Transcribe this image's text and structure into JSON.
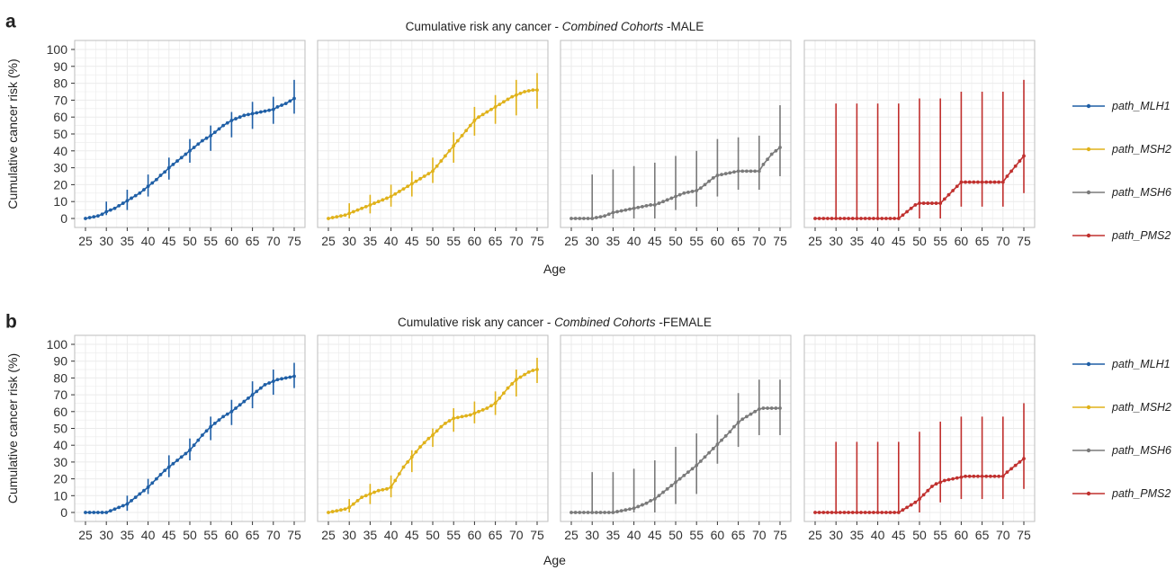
{
  "colors": {
    "path_MLH1": "#1f5fa6",
    "path_MSH2": "#e0b21a",
    "path_MSH6": "#7a7a7a",
    "path_PMS2": "#c0302e",
    "panel_border": "#bdbdbd",
    "grid": "#ebebeb"
  },
  "chart_data": [
    {
      "type": "line",
      "panel_letter": "a",
      "title": {
        "prefix": "Cumulative risk any cancer - ",
        "italic": "Combined Cohorts",
        "suffix": " -MALE"
      },
      "xlabel": "Age",
      "ylabel": "Cumulative cancer risk (%)",
      "ylim": [
        0,
        100
      ],
      "yticks": [
        0,
        10,
        20,
        30,
        40,
        50,
        60,
        70,
        80,
        90,
        100
      ],
      "xlim": [
        25,
        75
      ],
      "xticks": [
        25,
        30,
        35,
        40,
        45,
        50,
        55,
        60,
        65,
        70,
        75
      ],
      "grid": true,
      "legend_position": "right",
      "facets": [
        "path_MLH1",
        "path_MSH2",
        "path_MSH6",
        "path_PMS2"
      ],
      "x": [
        25,
        26,
        27,
        28,
        29,
        30,
        31,
        32,
        33,
        34,
        35,
        36,
        37,
        38,
        39,
        40,
        41,
        42,
        43,
        44,
        45,
        46,
        47,
        48,
        49,
        50,
        51,
        52,
        53,
        54,
        55,
        56,
        57,
        58,
        59,
        60,
        61,
        62,
        63,
        64,
        65,
        66,
        67,
        68,
        69,
        70,
        71,
        72,
        73,
        74,
        75
      ],
      "series": [
        {
          "name": "path_MLH1",
          "values": [
            0,
            0.5,
            1,
            1.5,
            2.5,
            4,
            5,
            6,
            7.5,
            9,
            10.5,
            12,
            13.5,
            15,
            17,
            19,
            21,
            23,
            25.5,
            27.5,
            30,
            32,
            34,
            36,
            38,
            40,
            42,
            44,
            46,
            47.5,
            49,
            51,
            53,
            55,
            56.5,
            58,
            59,
            60,
            61,
            61.5,
            62,
            62.5,
            63,
            63.5,
            64,
            64.5,
            66,
            67,
            68,
            69.5,
            71
          ],
          "errorbars": [
            {
              "x": 30,
              "low": 2,
              "high": 10
            },
            {
              "x": 35,
              "low": 5,
              "high": 17
            },
            {
              "x": 40,
              "low": 13,
              "high": 26
            },
            {
              "x": 45,
              "low": 23,
              "high": 36
            },
            {
              "x": 50,
              "low": 33,
              "high": 47
            },
            {
              "x": 55,
              "low": 40,
              "high": 55
            },
            {
              "x": 60,
              "low": 48,
              "high": 63
            },
            {
              "x": 65,
              "low": 53,
              "high": 69
            },
            {
              "x": 70,
              "low": 56,
              "high": 72
            },
            {
              "x": 75,
              "low": 62,
              "high": 82
            }
          ]
        },
        {
          "name": "path_MSH2",
          "values": [
            0,
            0.5,
            1,
            1.5,
            2,
            3,
            4,
            5,
            6,
            7,
            8,
            9,
            10,
            11,
            12,
            13,
            14.5,
            16,
            17.5,
            19,
            20.5,
            22,
            23.5,
            25,
            26.5,
            28,
            31,
            34,
            37,
            40,
            43,
            46,
            49,
            52,
            55,
            58,
            60,
            61.5,
            63,
            64.5,
            66,
            67.5,
            69,
            70.5,
            72,
            73,
            74,
            75,
            75.5,
            76,
            76
          ],
          "errorbars": [
            {
              "x": 30,
              "low": 0,
              "high": 9
            },
            {
              "x": 35,
              "low": 3,
              "high": 14
            },
            {
              "x": 40,
              "low": 7,
              "high": 20
            },
            {
              "x": 45,
              "low": 13,
              "high": 28
            },
            {
              "x": 50,
              "low": 21,
              "high": 36
            },
            {
              "x": 55,
              "low": 33,
              "high": 51
            },
            {
              "x": 60,
              "low": 49,
              "high": 66
            },
            {
              "x": 65,
              "low": 56,
              "high": 73
            },
            {
              "x": 70,
              "low": 61,
              "high": 82
            },
            {
              "x": 75,
              "low": 65,
              "high": 86
            }
          ]
        },
        {
          "name": "path_MSH6",
          "values": [
            0,
            0,
            0,
            0,
            0,
            0,
            0.5,
            1,
            1.5,
            2.5,
            3.5,
            4,
            4.5,
            5,
            5.5,
            6,
            6.5,
            7,
            7.5,
            8,
            8,
            9,
            10,
            11,
            12,
            13,
            14,
            15,
            15.5,
            16,
            16.5,
            18,
            20,
            22,
            24,
            25.5,
            26,
            26.5,
            27,
            27.5,
            28,
            28,
            28,
            28,
            28,
            28,
            32,
            35,
            38,
            40,
            42
          ],
          "errorbars": [
            {
              "x": 30,
              "low": 0,
              "high": 26
            },
            {
              "x": 35,
              "low": 0,
              "high": 29
            },
            {
              "x": 40,
              "low": 0,
              "high": 31
            },
            {
              "x": 45,
              "low": 0,
              "high": 33
            },
            {
              "x": 50,
              "low": 5,
              "high": 37
            },
            {
              "x": 55,
              "low": 7,
              "high": 40
            },
            {
              "x": 60,
              "low": 13,
              "high": 47
            },
            {
              "x": 65,
              "low": 17,
              "high": 48
            },
            {
              "x": 70,
              "low": 17,
              "high": 49
            },
            {
              "x": 75,
              "low": 25,
              "high": 67
            }
          ]
        },
        {
          "name": "path_PMS2",
          "values": [
            0,
            0,
            0,
            0,
            0,
            0,
            0,
            0,
            0,
            0,
            0,
            0,
            0,
            0,
            0,
            0,
            0,
            0,
            0,
            0,
            0,
            2,
            4,
            6,
            8,
            9,
            9,
            9,
            9,
            9,
            9,
            11.5,
            14,
            16.5,
            19,
            21.5,
            21.5,
            21.5,
            21.5,
            21.5,
            21.5,
            21.5,
            21.5,
            21.5,
            21.5,
            21.5,
            25,
            28,
            31,
            34,
            37
          ],
          "errorbars": [
            {
              "x": 30,
              "low": 0,
              "high": 68
            },
            {
              "x": 35,
              "low": 0,
              "high": 68
            },
            {
              "x": 40,
              "low": 0,
              "high": 68
            },
            {
              "x": 45,
              "low": 0,
              "high": 68
            },
            {
              "x": 50,
              "low": 0,
              "high": 71
            },
            {
              "x": 55,
              "low": 0,
              "high": 71
            },
            {
              "x": 60,
              "low": 7,
              "high": 75
            },
            {
              "x": 65,
              "low": 7,
              "high": 75
            },
            {
              "x": 70,
              "low": 7,
              "high": 75
            },
            {
              "x": 75,
              "low": 15,
              "high": 82
            }
          ]
        }
      ]
    },
    {
      "type": "line",
      "panel_letter": "b",
      "title": {
        "prefix": "Cumulative risk any cancer - ",
        "italic": "Combined Cohorts",
        "suffix": " -FEMALE"
      },
      "xlabel": "Age",
      "ylabel": "Cumulative cancer risk (%)",
      "ylim": [
        0,
        100
      ],
      "yticks": [
        0,
        10,
        20,
        30,
        40,
        50,
        60,
        70,
        80,
        90,
        100
      ],
      "xlim": [
        25,
        75
      ],
      "xticks": [
        25,
        30,
        35,
        40,
        45,
        50,
        55,
        60,
        65,
        70,
        75
      ],
      "grid": true,
      "legend_position": "right",
      "facets": [
        "path_MLH1",
        "path_MSH2",
        "path_MSH6",
        "path_PMS2"
      ],
      "x": [
        25,
        26,
        27,
        28,
        29,
        30,
        31,
        32,
        33,
        34,
        35,
        36,
        37,
        38,
        39,
        40,
        41,
        42,
        43,
        44,
        45,
        46,
        47,
        48,
        49,
        50,
        51,
        52,
        53,
        54,
        55,
        56,
        57,
        58,
        59,
        60,
        61,
        62,
        63,
        64,
        65,
        66,
        67,
        68,
        69,
        70,
        71,
        72,
        73,
        74,
        75
      ],
      "series": [
        {
          "name": "path_MLH1",
          "values": [
            0,
            0,
            0,
            0,
            0,
            0,
            1,
            2,
            3,
            4,
            5,
            7,
            9,
            11,
            13,
            15,
            17.5,
            20,
            22.5,
            25,
            27,
            29,
            31,
            33,
            35,
            37,
            40,
            43,
            46,
            48.5,
            51,
            53,
            55,
            57,
            58.5,
            60,
            62,
            64,
            66,
            68,
            70,
            72,
            74,
            76,
            77,
            78,
            79,
            79.5,
            80,
            80.5,
            81
          ],
          "errorbars": [
            {
              "x": 35,
              "low": 1,
              "high": 10
            },
            {
              "x": 40,
              "low": 11,
              "high": 20
            },
            {
              "x": 45,
              "low": 21,
              "high": 34
            },
            {
              "x": 50,
              "low": 31,
              "high": 44
            },
            {
              "x": 55,
              "low": 43,
              "high": 57
            },
            {
              "x": 60,
              "low": 52,
              "high": 67
            },
            {
              "x": 65,
              "low": 62,
              "high": 78
            },
            {
              "x": 70,
              "low": 70,
              "high": 85
            },
            {
              "x": 75,
              "low": 74,
              "high": 89
            }
          ]
        },
        {
          "name": "path_MSH2",
          "values": [
            0,
            0.5,
            1,
            1.5,
            2,
            3,
            5,
            7,
            9,
            10,
            11,
            12,
            13,
            13.5,
            14,
            15,
            19,
            23,
            27,
            30,
            33,
            36,
            39,
            41.5,
            44,
            46,
            48.5,
            51,
            53,
            54.5,
            56,
            56.5,
            57,
            57.5,
            58,
            59,
            60,
            61,
            62,
            63.5,
            65,
            68,
            71,
            74,
            76.5,
            79,
            80.5,
            82,
            83.5,
            84.5,
            85
          ],
          "errorbars": [
            {
              "x": 30,
              "low": 0,
              "high": 8
            },
            {
              "x": 35,
              "low": 5,
              "high": 17
            },
            {
              "x": 40,
              "low": 9,
              "high": 22
            },
            {
              "x": 45,
              "low": 24,
              "high": 37
            },
            {
              "x": 50,
              "low": 39,
              "high": 50
            },
            {
              "x": 55,
              "low": 48,
              "high": 62
            },
            {
              "x": 60,
              "low": 53,
              "high": 66
            },
            {
              "x": 65,
              "low": 58,
              "high": 72
            },
            {
              "x": 70,
              "low": 69,
              "high": 85
            },
            {
              "x": 75,
              "low": 77,
              "high": 92
            }
          ]
        },
        {
          "name": "path_MSH6",
          "values": [
            0,
            0,
            0,
            0,
            0,
            0,
            0,
            0,
            0,
            0,
            0,
            0.5,
            1,
            1.5,
            2,
            2.5,
            3.5,
            4.5,
            5.5,
            7,
            8,
            10,
            12,
            14,
            16,
            18,
            20,
            22,
            24,
            26,
            28,
            30.5,
            33,
            35.5,
            38,
            40.5,
            43,
            45.5,
            48,
            51,
            53.5,
            55.5,
            57,
            58.5,
            60,
            61.5,
            62,
            62,
            62,
            62,
            62
          ],
          "errorbars": [
            {
              "x": 30,
              "low": 0,
              "high": 24
            },
            {
              "x": 35,
              "low": 0,
              "high": 24
            },
            {
              "x": 40,
              "low": 0,
              "high": 26
            },
            {
              "x": 45,
              "low": 0,
              "high": 31
            },
            {
              "x": 50,
              "low": 5,
              "high": 39
            },
            {
              "x": 55,
              "low": 11,
              "high": 47
            },
            {
              "x": 60,
              "low": 29,
              "high": 58
            },
            {
              "x": 65,
              "low": 39,
              "high": 71
            },
            {
              "x": 70,
              "low": 46,
              "high": 79
            },
            {
              "x": 75,
              "low": 46,
              "high": 79
            }
          ]
        },
        {
          "name": "path_PMS2",
          "values": [
            0,
            0,
            0,
            0,
            0,
            0,
            0,
            0,
            0,
            0,
            0,
            0,
            0,
            0,
            0,
            0,
            0,
            0,
            0,
            0,
            0,
            1.5,
            3,
            4.5,
            6,
            8,
            10.5,
            13,
            15.5,
            17,
            18,
            19,
            19.5,
            20,
            20.5,
            21,
            21.5,
            21.5,
            21.5,
            21.5,
            21.5,
            21.5,
            21.5,
            21.5,
            21.5,
            21.5,
            24,
            26,
            28,
            30,
            32
          ],
          "errorbars": [
            {
              "x": 30,
              "low": 0,
              "high": 42
            },
            {
              "x": 35,
              "low": 0,
              "high": 42
            },
            {
              "x": 40,
              "low": 0,
              "high": 42
            },
            {
              "x": 45,
              "low": 0,
              "high": 42
            },
            {
              "x": 50,
              "low": 0,
              "high": 48
            },
            {
              "x": 55,
              "low": 6,
              "high": 54
            },
            {
              "x": 60,
              "low": 8,
              "high": 57
            },
            {
              "x": 65,
              "low": 8,
              "high": 57
            },
            {
              "x": 70,
              "low": 8,
              "high": 57
            },
            {
              "x": 75,
              "low": 14,
              "high": 65
            }
          ]
        }
      ]
    }
  ]
}
